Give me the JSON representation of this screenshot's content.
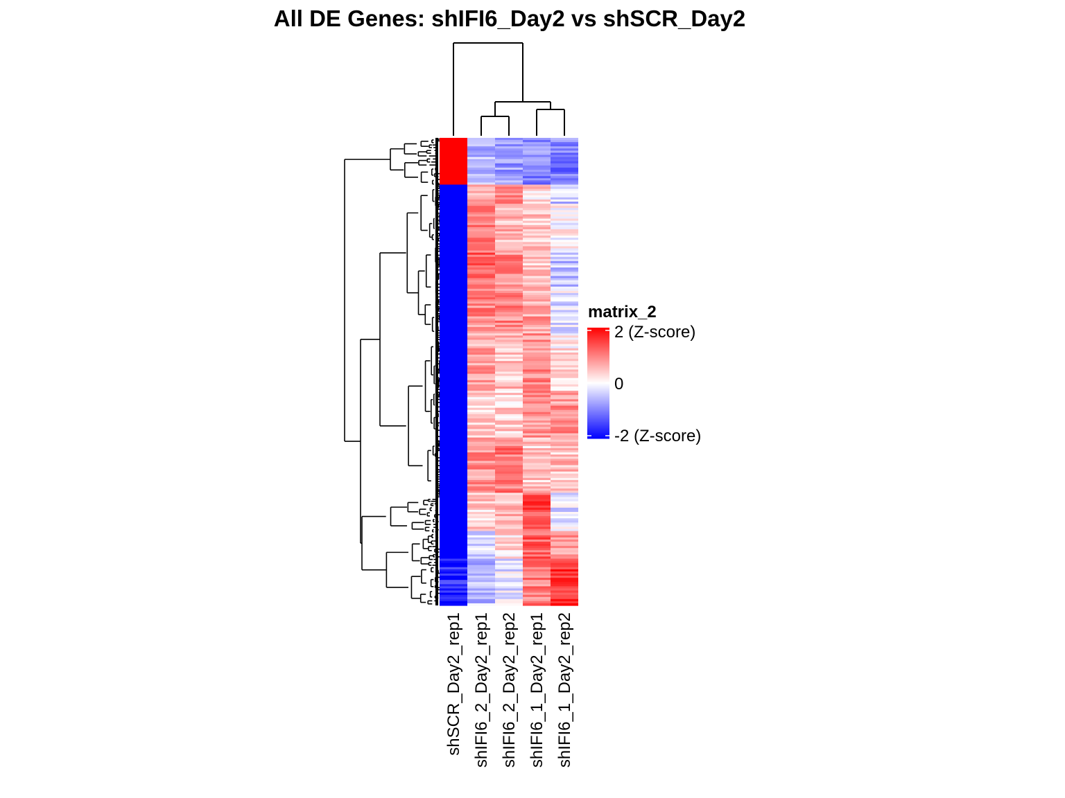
{
  "chart_data": {
    "type": "heatmap",
    "title": "All DE Genes: shIFI6_Day2  vs  shSCR_Day2",
    "columns": [
      "shSCR_Day2_rep1",
      "shIFI6_2_Day2_rep1",
      "shIFI6_2_Day2_rep2",
      "shIFI6_1_Day2_rep1",
      "shIFI6_1_Day2_rep2"
    ],
    "column_dendrogram": true,
    "row_dendrogram": true,
    "row_blocks": [
      {
        "fraction": 0.1,
        "values": [
          2.0,
          -0.6,
          -0.8,
          -0.9,
          -1.0
        ]
      },
      {
        "fraction": 0.04,
        "values": [
          -2.0,
          0.7,
          0.9,
          0.3,
          -0.4
        ]
      },
      {
        "fraction": 0.1,
        "values": [
          -2.0,
          1.1,
          0.6,
          0.4,
          0.0
        ]
      },
      {
        "fraction": 0.08,
        "values": [
          -2.0,
          1.2,
          0.9,
          0.5,
          -0.5
        ]
      },
      {
        "fraction": 0.1,
        "values": [
          -2.0,
          0.9,
          0.9,
          0.7,
          -0.2
        ]
      },
      {
        "fraction": 0.12,
        "values": [
          -2.0,
          0.7,
          0.5,
          0.9,
          0.2
        ]
      },
      {
        "fraction": 0.1,
        "values": [
          -2.0,
          0.4,
          0.4,
          0.8,
          0.8
        ]
      },
      {
        "fraction": 0.12,
        "values": [
          -2.0,
          0.8,
          1.0,
          0.4,
          0.5
        ]
      },
      {
        "fraction": 0.08,
        "values": [
          -2.0,
          0.4,
          0.6,
          1.4,
          -0.2
        ]
      },
      {
        "fraction": 0.06,
        "values": [
          -2.0,
          -0.2,
          0.3,
          1.3,
          0.9
        ]
      },
      {
        "fraction": 0.1,
        "values": [
          -1.7,
          -0.5,
          -0.2,
          1.0,
          1.6
        ]
      }
    ],
    "legend": {
      "title": "matrix_2",
      "ticks": [
        {
          "value": 2,
          "label": "2 (Z-score)"
        },
        {
          "value": 0,
          "label": "0"
        },
        {
          "value": -2,
          "label": "-2 (Z-score)"
        }
      ],
      "placement": "right"
    },
    "colors": {
      "low": "#0000ff",
      "mid": "#ffffff",
      "high": "#ff0000"
    },
    "value_range": [
      -2,
      2
    ]
  }
}
